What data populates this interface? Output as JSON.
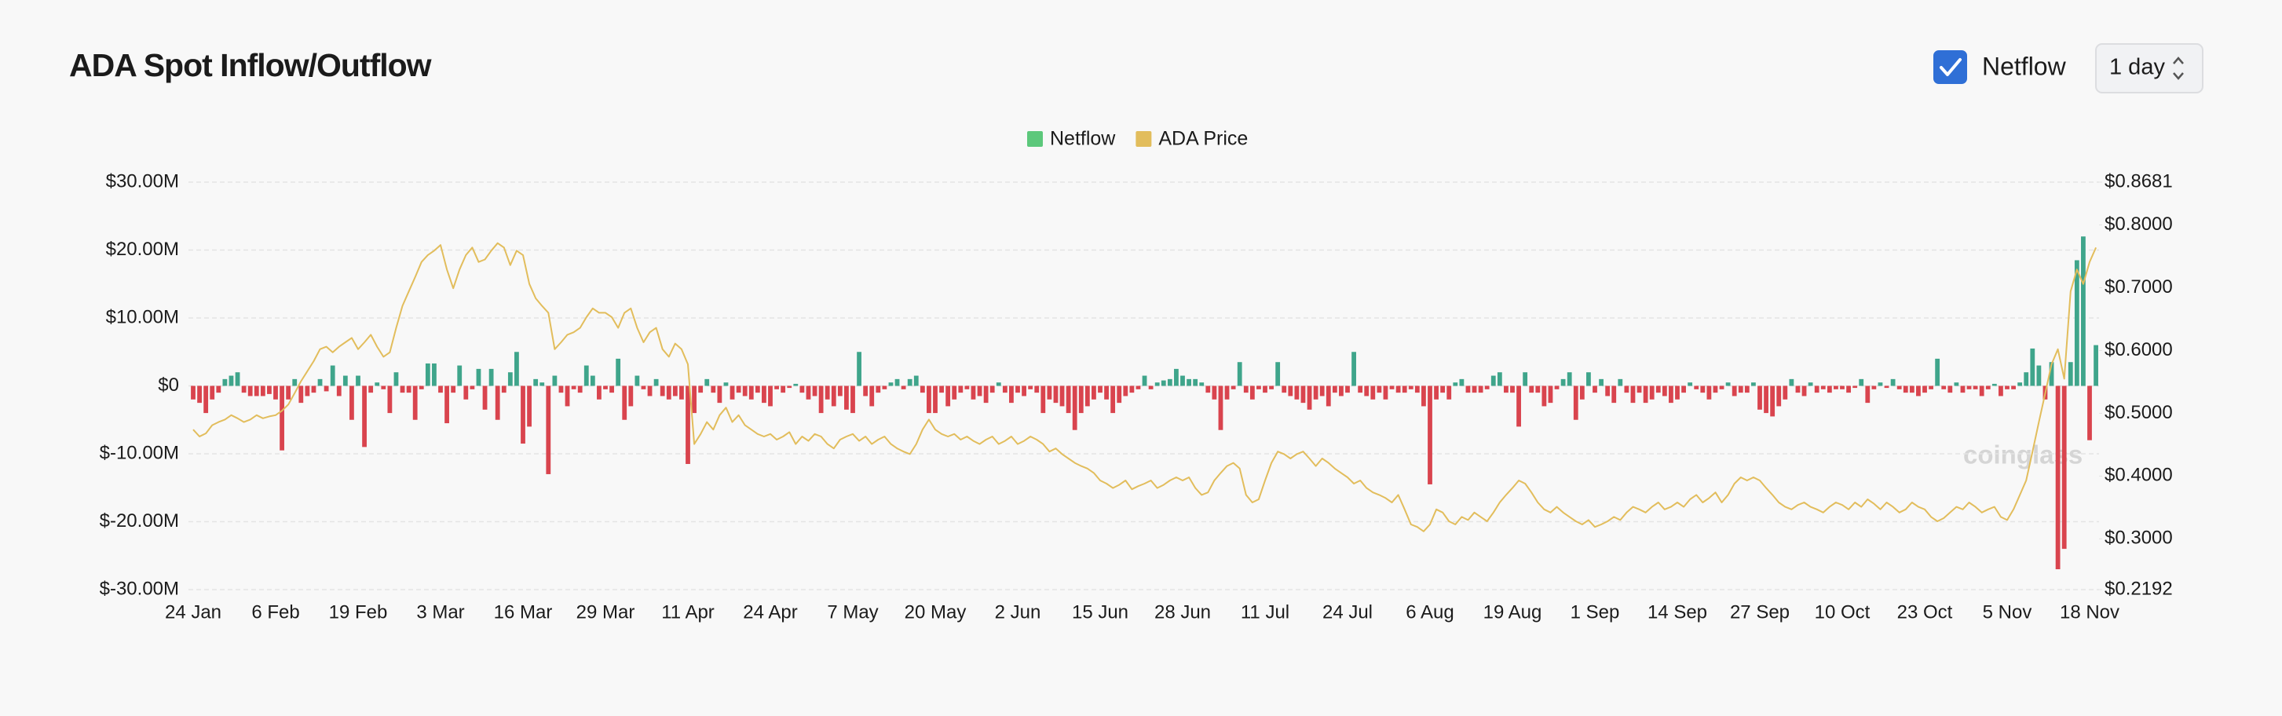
{
  "header": {
    "title": "ADA Spot Inflow/Outflow"
  },
  "controls": {
    "toggle": {
      "label": "Netflow",
      "checked": true
    },
    "interval": "1 day"
  },
  "watermark": "coinglass",
  "chart_data": {
    "type": "bar",
    "negative_color": "#d9444e",
    "grid": true,
    "legend": "top",
    "categories": [
      "24 Jan",
      null,
      null,
      null,
      null,
      null,
      null,
      null,
      null,
      null,
      null,
      null,
      null,
      "6 Feb",
      null,
      null,
      null,
      null,
      null,
      null,
      null,
      null,
      null,
      null,
      null,
      null,
      "19 Feb",
      null,
      null,
      null,
      null,
      null,
      null,
      null,
      null,
      null,
      null,
      null,
      null,
      "3 Mar",
      null,
      null,
      null,
      null,
      null,
      null,
      null,
      null,
      null,
      null,
      null,
      null,
      "16 Mar",
      null,
      null,
      null,
      null,
      null,
      null,
      null,
      null,
      null,
      null,
      null,
      null,
      "29 Mar",
      null,
      null,
      null,
      null,
      null,
      null,
      null,
      null,
      null,
      null,
      null,
      null,
      "11 Apr",
      null,
      null,
      null,
      null,
      null,
      null,
      null,
      null,
      null,
      null,
      null,
      null,
      "24 Apr",
      null,
      null,
      null,
      null,
      null,
      null,
      null,
      null,
      null,
      null,
      null,
      null,
      "7 May",
      null,
      null,
      null,
      null,
      null,
      null,
      null,
      null,
      null,
      null,
      null,
      null,
      "20 May",
      null,
      null,
      null,
      null,
      null,
      null,
      null,
      null,
      null,
      null,
      null,
      null,
      "2 Jun",
      null,
      null,
      null,
      null,
      null,
      null,
      null,
      null,
      null,
      null,
      null,
      null,
      "15 Jun",
      null,
      null,
      null,
      null,
      null,
      null,
      null,
      null,
      null,
      null,
      null,
      null,
      "28 Jun",
      null,
      null,
      null,
      null,
      null,
      null,
      null,
      null,
      null,
      null,
      null,
      null,
      "11 Jul",
      null,
      null,
      null,
      null,
      null,
      null,
      null,
      null,
      null,
      null,
      null,
      null,
      "24 Jul",
      null,
      null,
      null,
      null,
      null,
      null,
      null,
      null,
      null,
      null,
      null,
      null,
      "6 Aug",
      null,
      null,
      null,
      null,
      null,
      null,
      null,
      null,
      null,
      null,
      null,
      null,
      "19 Aug",
      null,
      null,
      null,
      null,
      null,
      null,
      null,
      null,
      null,
      null,
      null,
      null,
      "1 Sep",
      null,
      null,
      null,
      null,
      null,
      null,
      null,
      null,
      null,
      null,
      null,
      null,
      "14 Sep",
      null,
      null,
      null,
      null,
      null,
      null,
      null,
      null,
      null,
      null,
      null,
      null,
      "27 Sep",
      null,
      null,
      null,
      null,
      null,
      null,
      null,
      null,
      null,
      null,
      null,
      null,
      "10 Oct",
      null,
      null,
      null,
      null,
      null,
      null,
      null,
      null,
      null,
      null,
      null,
      null,
      "23 Oct",
      null,
      null,
      null,
      null,
      null,
      null,
      null,
      null,
      null,
      null,
      null,
      null,
      "5 Nov",
      null,
      null,
      null,
      null,
      null,
      null,
      null,
      null,
      null,
      null,
      null,
      null,
      "18 Nov",
      null
    ],
    "series": [
      {
        "name": "Netflow",
        "type": "bar",
        "color": "#3fa58b",
        "legend_color": "#5cc87b",
        "values": [
          -2,
          -2.5,
          -4,
          -2,
          -1,
          1,
          1.5,
          2,
          -1,
          -1.5,
          -1.5,
          -1.5,
          -1.2,
          -2,
          -9.5,
          -2,
          1,
          -2.5,
          -1.5,
          -1,
          1,
          -0.8,
          3,
          -1.5,
          1.5,
          -5,
          1.5,
          -9,
          -1,
          0.5,
          -0.5,
          -4,
          2,
          -1,
          -1,
          -5,
          -0.5,
          3.3,
          3.3,
          -1,
          -5.5,
          -1,
          3,
          -2,
          -0.5,
          2.5,
          -3.5,
          2.5,
          -5,
          -1,
          2,
          5,
          -8.5,
          -6,
          1,
          0.5,
          -13,
          1.5,
          -1,
          -3,
          -0.5,
          -1,
          3,
          1.5,
          -2,
          -0.5,
          -1,
          4,
          -5,
          -3,
          1.5,
          -0.5,
          -1.5,
          1,
          -1.5,
          -2,
          -1.5,
          -2,
          -11.5,
          -4,
          -1,
          1,
          -1,
          -2.5,
          0.5,
          -2,
          -1,
          -1.5,
          -2,
          -1,
          -2.5,
          -3,
          -0.5,
          -1,
          -0.3,
          0.3,
          -1,
          -2,
          -1.5,
          -4,
          -2,
          -3,
          -1.5,
          -3.5,
          -4,
          5,
          -1.5,
          -3,
          -1,
          -0.5,
          0.5,
          1,
          -0.5,
          1,
          1.5,
          -1,
          -4,
          -4,
          -1,
          -3,
          -2,
          -1,
          -0.5,
          -2,
          -1.5,
          -2.5,
          -1,
          0.5,
          -1,
          -2.5,
          -1,
          -1.5,
          -0.5,
          -1,
          -4,
          -2,
          -2.5,
          -3,
          -4,
          -6.5,
          -4,
          -3,
          -2,
          -1,
          -2,
          -4,
          -2.5,
          -1.5,
          -1,
          -0.5,
          1.5,
          -0.5,
          0.5,
          0.8,
          1,
          2.5,
          1.5,
          1,
          1,
          0.5,
          -1,
          -2,
          -6.5,
          -2,
          -0.5,
          3.5,
          -1,
          -2,
          -0.5,
          -1,
          -0.5,
          3.5,
          -1,
          -1.5,
          -2,
          -2.5,
          -3.5,
          -2,
          -1.5,
          -3,
          -1,
          -1.5,
          -1,
          5,
          -1,
          -1.5,
          -2,
          -1,
          -2,
          -0.5,
          -1,
          -1,
          -0.5,
          -1,
          -3,
          -14.5,
          -2,
          -1,
          -2,
          0.5,
          1,
          -1,
          -1,
          -1,
          -0.5,
          1.5,
          2,
          -1,
          -1,
          -6,
          2,
          -1,
          -1,
          -3,
          -2.5,
          -0.5,
          1,
          2,
          -5,
          -2,
          2,
          -1,
          1,
          -1.5,
          -2.5,
          1,
          -1,
          -2.5,
          -1,
          -2.5,
          -2,
          -1,
          -1.5,
          -2.5,
          -2,
          -1,
          0.5,
          -0.5,
          -1,
          -2,
          -1,
          -0.5,
          0.5,
          -1.5,
          -1,
          -1,
          0.5,
          -3.5,
          -4,
          -4.5,
          -3,
          -2,
          1,
          -1,
          -1.5,
          0.5,
          -1,
          -0.5,
          -1,
          -0.5,
          -0.5,
          -1,
          -0.3,
          1,
          -2.5,
          -0.5,
          0.5,
          -0.3,
          1,
          -0.5,
          -1,
          -1,
          -1.5,
          -1,
          -0.5,
          4,
          -0.5,
          -1,
          0.5,
          -1,
          -0.5,
          -0.5,
          -1.5,
          -0.5,
          0.3,
          -1.5,
          -0.5,
          -0.5,
          0.5,
          2,
          5.5,
          3,
          -2,
          3.5,
          -27,
          -24,
          3.5,
          18.5,
          22,
          -8,
          6
        ]
      },
      {
        "name": "ADA Price",
        "type": "line",
        "axis": "y2",
        "color": "#e2bd5c",
        "values": [
          0.474,
          0.463,
          0.468,
          0.481,
          0.486,
          0.49,
          0.497,
          0.492,
          0.486,
          0.49,
          0.497,
          0.492,
          0.495,
          0.497,
          0.504,
          0.514,
          0.532,
          0.551,
          0.567,
          0.583,
          0.602,
          0.606,
          0.597,
          0.606,
          0.613,
          0.62,
          0.602,
          0.613,
          0.625,
          0.606,
          0.59,
          0.597,
          0.636,
          0.671,
          0.694,
          0.717,
          0.741,
          0.752,
          0.759,
          0.768,
          0.729,
          0.699,
          0.729,
          0.752,
          0.764,
          0.741,
          0.745,
          0.759,
          0.771,
          0.764,
          0.736,
          0.759,
          0.752,
          0.706,
          0.683,
          0.671,
          0.66,
          0.602,
          0.613,
          0.625,
          0.629,
          0.636,
          0.653,
          0.667,
          0.66,
          0.66,
          0.653,
          0.636,
          0.66,
          0.667,
          0.636,
          0.613,
          0.629,
          0.636,
          0.602,
          0.59,
          0.611,
          0.602,
          0.578,
          0.451,
          0.467,
          0.486,
          0.474,
          0.497,
          0.509,
          0.486,
          0.497,
          0.481,
          0.474,
          0.467,
          0.463,
          0.467,
          0.458,
          0.463,
          0.47,
          0.451,
          0.463,
          0.456,
          0.467,
          0.463,
          0.451,
          0.444,
          0.458,
          0.463,
          0.467,
          0.456,
          0.463,
          0.451,
          0.458,
          0.463,
          0.451,
          0.444,
          0.439,
          0.435,
          0.451,
          0.474,
          0.49,
          0.474,
          0.467,
          0.463,
          0.467,
          0.458,
          0.463,
          0.456,
          0.451,
          0.458,
          0.463,
          0.451,
          0.456,
          0.463,
          0.451,
          0.456,
          0.463,
          0.458,
          0.451,
          0.439,
          0.444,
          0.435,
          0.428,
          0.421,
          0.416,
          0.412,
          0.405,
          0.393,
          0.388,
          0.381,
          0.386,
          0.393,
          0.379,
          0.384,
          0.388,
          0.393,
          0.381,
          0.386,
          0.393,
          0.398,
          0.393,
          0.398,
          0.381,
          0.37,
          0.374,
          0.393,
          0.405,
          0.416,
          0.421,
          0.412,
          0.37,
          0.358,
          0.363,
          0.393,
          0.421,
          0.439,
          0.435,
          0.428,
          0.435,
          0.439,
          0.428,
          0.416,
          0.428,
          0.421,
          0.412,
          0.405,
          0.398,
          0.388,
          0.393,
          0.381,
          0.374,
          0.37,
          0.365,
          0.358,
          0.37,
          0.347,
          0.323,
          0.319,
          0.312,
          0.323,
          0.347,
          0.342,
          0.328,
          0.323,
          0.335,
          0.33,
          0.342,
          0.335,
          0.328,
          0.342,
          0.358,
          0.37,
          0.381,
          0.393,
          0.388,
          0.374,
          0.358,
          0.347,
          0.342,
          0.351,
          0.342,
          0.335,
          0.328,
          0.323,
          0.33,
          0.319,
          0.323,
          0.328,
          0.335,
          0.33,
          0.342,
          0.351,
          0.347,
          0.342,
          0.351,
          0.358,
          0.347,
          0.351,
          0.358,
          0.351,
          0.363,
          0.37,
          0.358,
          0.365,
          0.374,
          0.358,
          0.37,
          0.388,
          0.398,
          0.393,
          0.398,
          0.393,
          0.381,
          0.37,
          0.358,
          0.351,
          0.347,
          0.354,
          0.358,
          0.351,
          0.347,
          0.342,
          0.351,
          0.358,
          0.354,
          0.347,
          0.358,
          0.351,
          0.363,
          0.356,
          0.347,
          0.358,
          0.351,
          0.342,
          0.347,
          0.358,
          0.351,
          0.347,
          0.335,
          0.328,
          0.333,
          0.342,
          0.351,
          0.347,
          0.358,
          0.351,
          0.342,
          0.347,
          0.351,
          0.335,
          0.33,
          0.347,
          0.37,
          0.393,
          0.439,
          0.486,
          0.532,
          0.578,
          0.602,
          0.555,
          0.694,
          0.729,
          0.706,
          0.741,
          0.764
        ]
      }
    ],
    "ylim": [
      -30,
      30
    ],
    "yticks": [
      {
        "value": 30,
        "label": "$30.00M"
      },
      {
        "value": 20,
        "label": "$20.00M"
      },
      {
        "value": 10,
        "label": "$10.00M"
      },
      {
        "value": 0,
        "label": "$0"
      },
      {
        "value": -10,
        "label": "$-10.00M"
      },
      {
        "value": -20,
        "label": "$-20.00M"
      },
      {
        "value": -30,
        "label": "$-30.00M"
      }
    ],
    "y2lim": [
      0.2192,
      0.8681
    ],
    "y2ticks": [
      {
        "value": 0.8681,
        "label": "$0.8681"
      },
      {
        "value": 0.8,
        "label": "$0.8000"
      },
      {
        "value": 0.7,
        "label": "$0.7000"
      },
      {
        "value": 0.6,
        "label": "$0.6000"
      },
      {
        "value": 0.5,
        "label": "$0.5000"
      },
      {
        "value": 0.4,
        "label": "$0.4000"
      },
      {
        "value": 0.3,
        "label": "$0.3000"
      },
      {
        "value": 0.2192,
        "label": "$0.2192"
      }
    ]
  }
}
